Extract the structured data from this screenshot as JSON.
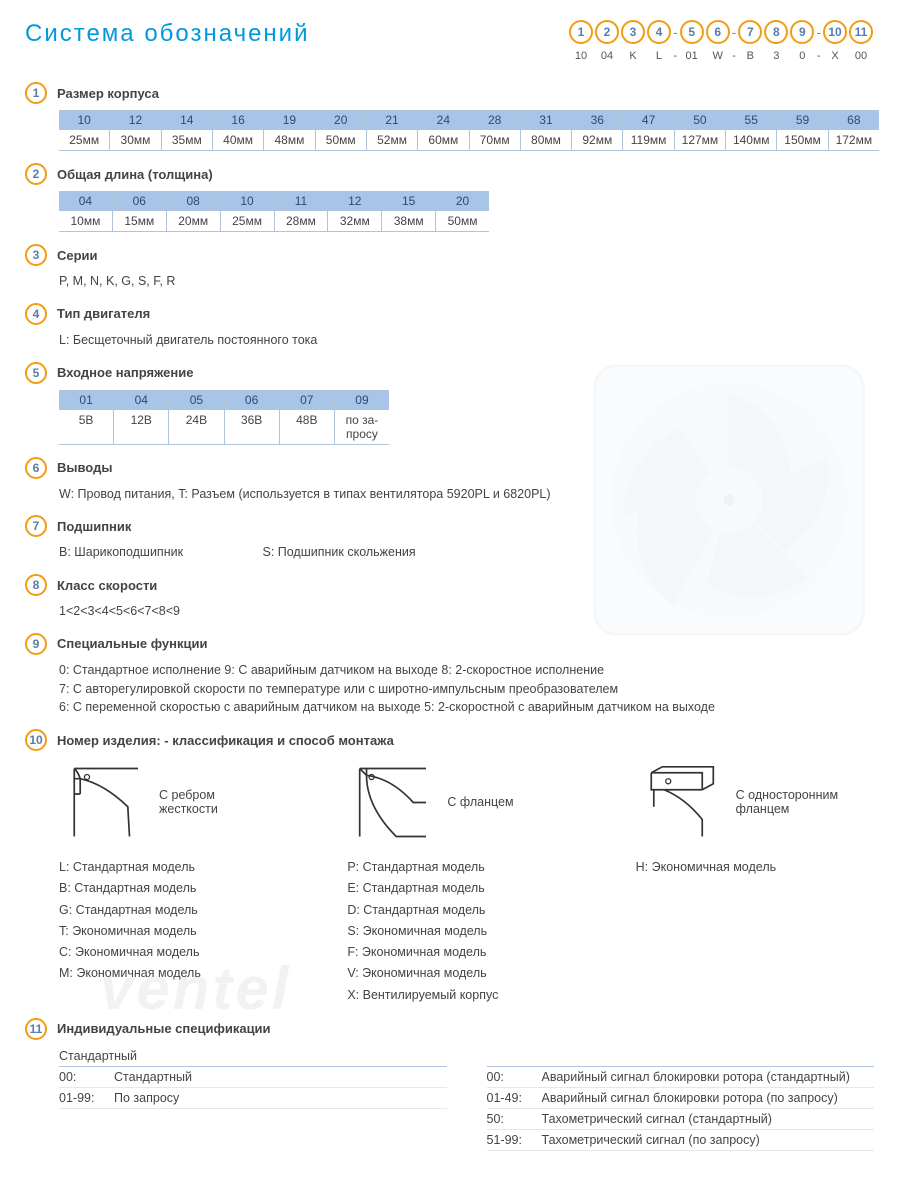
{
  "title": "Система обозначений",
  "codeStrip": {
    "groups": [
      [
        {
          "n": "1",
          "v": "10"
        },
        {
          "n": "2",
          "v": "04"
        },
        {
          "n": "3",
          "v": "K"
        },
        {
          "n": "4",
          "v": "L"
        }
      ],
      [
        {
          "n": "5",
          "v": "01"
        },
        {
          "n": "6",
          "v": "W"
        }
      ],
      [
        {
          "n": "7",
          "v": "B"
        },
        {
          "n": "8",
          "v": "3"
        },
        {
          "n": "9",
          "v": "0"
        }
      ],
      [
        {
          "n": "10",
          "v": "X"
        },
        {
          "n": "11",
          "v": "00"
        }
      ]
    ]
  },
  "sections": {
    "s1": {
      "num": "1",
      "title": "Размер корпуса",
      "table": [
        {
          "h": "10",
          "b": "25мм"
        },
        {
          "h": "12",
          "b": "30мм"
        },
        {
          "h": "14",
          "b": "35мм"
        },
        {
          "h": "16",
          "b": "40мм"
        },
        {
          "h": "19",
          "b": "48мм"
        },
        {
          "h": "20",
          "b": "50мм"
        },
        {
          "h": "21",
          "b": "52мм"
        },
        {
          "h": "24",
          "b": "60мм"
        },
        {
          "h": "28",
          "b": "70мм"
        },
        {
          "h": "31",
          "b": "80мм"
        },
        {
          "h": "36",
          "b": "92мм"
        },
        {
          "h": "47",
          "b": "119мм"
        },
        {
          "h": "50",
          "b": "127мм"
        },
        {
          "h": "55",
          "b": "140мм"
        },
        {
          "h": "59",
          "b": "150мм"
        },
        {
          "h": "68",
          "b": "172мм"
        }
      ]
    },
    "s2": {
      "num": "2",
      "title": "Общая длина (толщина)",
      "table": [
        {
          "h": "04",
          "b": "10мм"
        },
        {
          "h": "06",
          "b": "15мм"
        },
        {
          "h": "08",
          "b": "20мм"
        },
        {
          "h": "10",
          "b": "25мм"
        },
        {
          "h": "11",
          "b": "28мм"
        },
        {
          "h": "12",
          "b": "32мм"
        },
        {
          "h": "15",
          "b": "38мм"
        },
        {
          "h": "20",
          "b": "50мм"
        }
      ]
    },
    "s3": {
      "num": "3",
      "title": "Серии",
      "body": "P, M, N, K, G, S, F, R"
    },
    "s4": {
      "num": "4",
      "title": "Тип двигателя",
      "body": "L: Бесщеточный двигатель постоянного тока"
    },
    "s5": {
      "num": "5",
      "title": "Входное напряжение",
      "table": [
        {
          "h": "01",
          "b": "5В"
        },
        {
          "h": "04",
          "b": "12В"
        },
        {
          "h": "05",
          "b": "24В"
        },
        {
          "h": "06",
          "b": "36В"
        },
        {
          "h": "07",
          "b": "48В"
        },
        {
          "h": "09",
          "b": "по за-\nпросу"
        }
      ]
    },
    "s6": {
      "num": "6",
      "title": "Выводы",
      "body": "W: Провод питания, T: Разъем (используется в типах вентилятора  5920PL и 6820PL)"
    },
    "s7": {
      "num": "7",
      "title": "Подшипник",
      "body1": "B: Шарикоподшипник",
      "body2": "S: Подшипник скольжения"
    },
    "s8": {
      "num": "8",
      "title": "Класс скорости",
      "body": "1<2<3<4<5<6<7<8<9"
    },
    "s9": {
      "num": "9",
      "title": "Специальные функции",
      "lines": [
        "0: Стандартное исполнение   9:  С аварийным датчиком на выходе   8: 2-скоростное исполнение",
        "7: С авторегулировкой скорости по температуре или с широтно-импульсным преобразователем",
        "6: С переменной скоростью с аварийным датчиком на выходе   5: 2-скоростной с аварийным датчиком на выходе"
      ]
    },
    "s10": {
      "num": "10",
      "title": "Номер изделия: - классификация  и способ монтажа",
      "mounts": [
        {
          "label": "С ребром\nжесткости",
          "list": [
            "L:  Стандартная модель",
            "B:  Стандартная модель",
            "G:  Стандартная модель",
            "T:  Экономичная модель",
            "C:  Экономичная модель",
            "M:  Экономичная модель"
          ]
        },
        {
          "label": "С фланцем",
          "list": [
            "P:  Стандартная модель",
            "E:  Стандартная модель",
            "D:  Стандартная модель",
            "S:  Экономичная модель",
            "F:  Экономичная модель",
            "V:  Экономичная модель",
            "X:  Вентилируемый корпус"
          ]
        },
        {
          "label": "С односторонним\nфланцем",
          "list": [
            "H:  Экономичная модель"
          ]
        }
      ]
    },
    "s11": {
      "num": "11",
      "title": "Индивидуальные спецификации",
      "leftHead": "Стандартный",
      "leftRows": [
        {
          "c": "00:",
          "t": "Стандартный"
        },
        {
          "c": "01-99:",
          "t": "По запросу"
        }
      ],
      "rightRows": [
        {
          "c": "00:",
          "t": "Аварийный сигнал блокировки ротора (стандартный)"
        },
        {
          "c": "01-49:",
          "t": "Аварийный сигнал блокировки ротора (по запросу)"
        },
        {
          "c": "50:",
          "t": "Тахометрический сигнал (стандартный)"
        },
        {
          "c": "51-99:",
          "t": "Тахометрический сигнал (по запросу)"
        }
      ]
    }
  },
  "watermark": "ventel",
  "colors": {
    "accent": "#0099dd",
    "circle": "#f39c12",
    "circleText": "#5a7ca8",
    "tableHead": "#a8c4e6",
    "tableBorder": "#b0c4de",
    "text": "#444444"
  }
}
